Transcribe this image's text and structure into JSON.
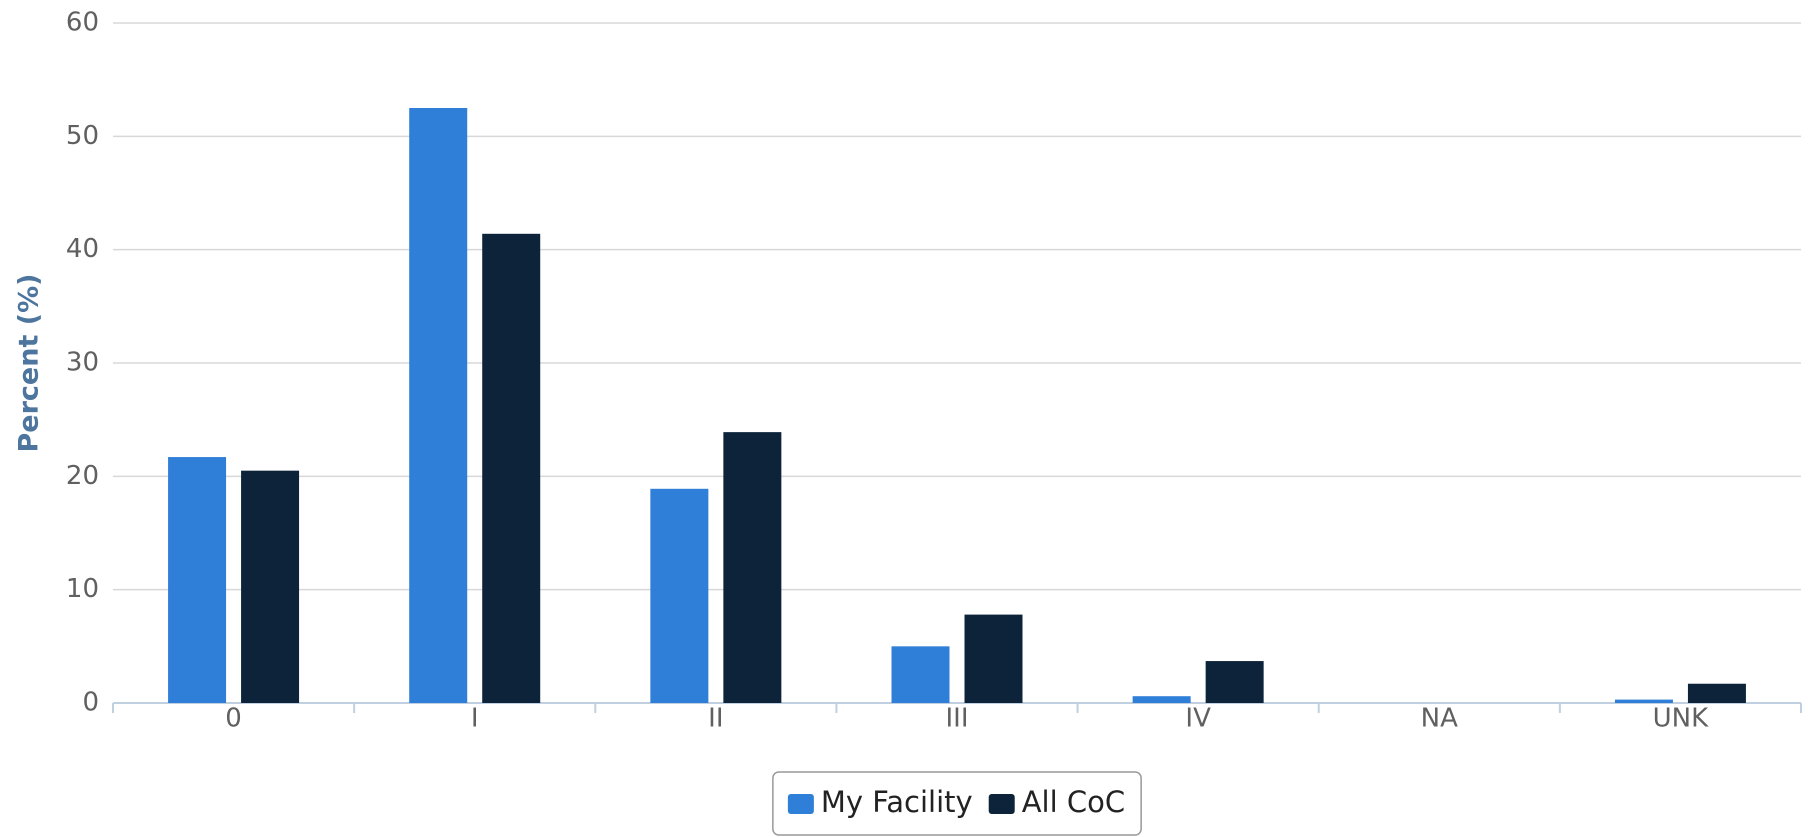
{
  "chart_data": {
    "type": "bar",
    "y_axis_title": "Percent (%)",
    "categories": [
      "0",
      "I",
      "II",
      "III",
      "IV",
      "NA",
      "UNK"
    ],
    "series": [
      {
        "name": "My Facility",
        "color": "#2f7ed8",
        "values": [
          21.7,
          52.5,
          18.9,
          5.0,
          0.6,
          0,
          0.3
        ]
      },
      {
        "name": "All CoC",
        "color": "#0d233a",
        "values": [
          20.5,
          41.4,
          23.9,
          7.8,
          3.7,
          0,
          1.7
        ]
      }
    ],
    "ylim": [
      0,
      60
    ],
    "yticks": [
      0,
      10,
      20,
      30,
      40,
      50,
      60
    ],
    "grid": true,
    "legend": "bottom"
  }
}
